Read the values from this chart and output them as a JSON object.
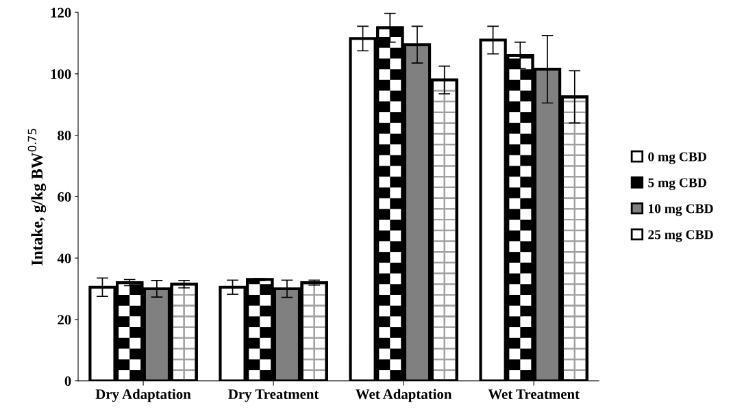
{
  "chart_data": {
    "type": "bar",
    "ylabel": "Intake, g/kg BW$^{0.75}$",
    "categories": [
      "Dry Adaptation",
      "Dry Treatment",
      "Wet Adaptation",
      "Wet Treatment"
    ],
    "series": [
      {
        "name": "0 mg CBD",
        "color": "#ffffff",
        "values": [
          30.5,
          30.5,
          111.5,
          111
        ],
        "errors": [
          3,
          2.3,
          4,
          4.5
        ]
      },
      {
        "name": "5 mg CBD",
        "color": "#000000",
        "values": [
          32,
          33,
          115,
          106
        ],
        "errors": [
          1,
          0.3,
          4.7,
          4.3
        ]
      },
      {
        "name": "10 mg CBD",
        "color": "#808080",
        "values": [
          30,
          30,
          109.5,
          101.5
        ],
        "errors": [
          2.7,
          2.8,
          6,
          11
        ]
      },
      {
        "name": "25 mg CBD",
        "color": "#ffffff",
        "values": [
          31.5,
          32,
          98,
          92.5
        ],
        "errors": [
          1.2,
          0.8,
          4.5,
          8.5
        ]
      }
    ],
    "ylim": [
      0,
      120
    ],
    "yticks": [
      0,
      20,
      40,
      60,
      80,
      100,
      120
    ],
    "grid": false,
    "legend": "right"
  }
}
